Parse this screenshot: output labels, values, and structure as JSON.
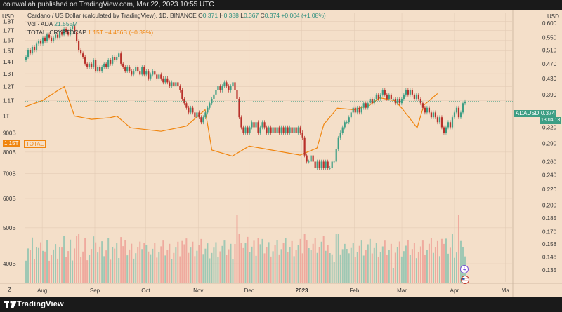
{
  "header": {
    "text": "coinwallah published on TradingView.com, Mar 22, 2023 10:55 UTC"
  },
  "legend": {
    "line1": {
      "name": "Cardano / US Dollar (calculated by TradingView), 1D, BINANCE",
      "o_label": "O",
      "o": "0.371",
      "h_label": "H",
      "h": "0.388",
      "l_label": "L",
      "l": "0.367",
      "c_label": "C",
      "c": "0.374",
      "chg": "+0.004 (+1.08%)"
    },
    "line2": {
      "name": "Vol · ADA",
      "value": "21.555M"
    },
    "line3": {
      "name": "TOTAL, CRYPTOCAP",
      "value": "1.15T",
      "chg": "−4.456B (−0.39%)"
    }
  },
  "axis": {
    "left_unit": "USD",
    "right_unit": "USD",
    "left_ticks": [
      "1.8T",
      "1.7T",
      "1.6T",
      "1.5T",
      "1.4T",
      "1.3T",
      "1.2T",
      "1.1T",
      "1T",
      "900B",
      "800B",
      "700B",
      "600B",
      "500B",
      "400B"
    ],
    "right_ticks": [
      "0.600",
      "0.550",
      "0.510",
      "0.470",
      "0.430",
      "0.390",
      "0.350",
      "0.320",
      "0.290",
      "0.260",
      "0.240",
      "0.220",
      "0.200",
      "0.185",
      "0.170",
      "0.158",
      "0.146",
      "0.135"
    ],
    "x_ticks": [
      "Aug",
      "Sep",
      "Oct",
      "Nov",
      "Dec",
      "2023",
      "Feb",
      "Mar",
      "Apr",
      "Ma"
    ],
    "z_label": "Z"
  },
  "badges": {
    "ada_label": "ADAUSD",
    "ada_price": "0.374",
    "ada_time": "13:04:13",
    "total_price": "1.15T",
    "total_label": "TOTAL"
  },
  "footer": {
    "brand": "TradingView"
  },
  "colors": {
    "background": "#f4dfc9",
    "up": "#3d9e84",
    "down": "#b8302a",
    "total_line": "#f0850e",
    "vol_up": "#8fc4b0",
    "vol_down": "#eda196"
  },
  "chart_data": {
    "type": "candlestick",
    "x_range": [
      "2022-07-22",
      "2023-05-05"
    ],
    "price_axis": {
      "scale": "log",
      "range": [
        0.13,
        0.64
      ]
    },
    "total_axis": {
      "scale": "log",
      "range": [
        370000000000.0,
        1900000000000.0
      ]
    },
    "series": [
      {
        "name": "ADAUSD",
        "type": "candlestick",
        "close": [
          0.49,
          0.51,
          0.5,
          0.52,
          0.51,
          0.53,
          0.54,
          0.53,
          0.55,
          0.54,
          0.56,
          0.55,
          0.54,
          0.55,
          0.56,
          0.55,
          0.57,
          0.56,
          0.58,
          0.57,
          0.56,
          0.58,
          0.59,
          0.57,
          0.54,
          0.51,
          0.5,
          0.49,
          0.47,
          0.46,
          0.47,
          0.46,
          0.48,
          0.45,
          0.46,
          0.45,
          0.46,
          0.47,
          0.46,
          0.48,
          0.47,
          0.49,
          0.48,
          0.49,
          0.5,
          0.47,
          0.46,
          0.45,
          0.46,
          0.45,
          0.44,
          0.45,
          0.46,
          0.45,
          0.44,
          0.46,
          0.44,
          0.45,
          0.43,
          0.44,
          0.45,
          0.44,
          0.43,
          0.44,
          0.43,
          0.42,
          0.43,
          0.42,
          0.41,
          0.42,
          0.41,
          0.42,
          0.41,
          0.4,
          0.38,
          0.37,
          0.36,
          0.35,
          0.36,
          0.35,
          0.34,
          0.35,
          0.34,
          0.33,
          0.34,
          0.35,
          0.36,
          0.37,
          0.38,
          0.39,
          0.4,
          0.41,
          0.4,
          0.41,
          0.42,
          0.41,
          0.4,
          0.41,
          0.42,
          0.4,
          0.38,
          0.34,
          0.32,
          0.31,
          0.32,
          0.31,
          0.32,
          0.33,
          0.32,
          0.33,
          0.31,
          0.32,
          0.33,
          0.32,
          0.31,
          0.32,
          0.31,
          0.32,
          0.31,
          0.32,
          0.31,
          0.32,
          0.31,
          0.32,
          0.31,
          0.32,
          0.31,
          0.32,
          0.31,
          0.32,
          0.31,
          0.3,
          0.27,
          0.26,
          0.26,
          0.27,
          0.26,
          0.25,
          0.26,
          0.25,
          0.26,
          0.25,
          0.26,
          0.25,
          0.25,
          0.26,
          0.26,
          0.28,
          0.3,
          0.31,
          0.32,
          0.33,
          0.33,
          0.34,
          0.35,
          0.36,
          0.35,
          0.36,
          0.35,
          0.36,
          0.37,
          0.36,
          0.37,
          0.38,
          0.37,
          0.38,
          0.39,
          0.38,
          0.39,
          0.4,
          0.39,
          0.38,
          0.39,
          0.38,
          0.38,
          0.37,
          0.38,
          0.37,
          0.38,
          0.39,
          0.4,
          0.39,
          0.4,
          0.39,
          0.38,
          0.39,
          0.38,
          0.37,
          0.36,
          0.35,
          0.36,
          0.35,
          0.34,
          0.35,
          0.34,
          0.33,
          0.34,
          0.32,
          0.31,
          0.32,
          0.33,
          0.32,
          0.34,
          0.35,
          0.36,
          0.34,
          0.35,
          0.37,
          0.374
        ],
        "open": [
          0.48,
          0.49,
          0.51,
          0.5,
          0.52,
          0.51,
          0.53,
          0.54,
          0.53,
          0.55,
          0.54,
          0.56,
          0.55,
          0.54,
          0.55,
          0.56,
          0.55,
          0.57,
          0.56,
          0.58,
          0.57,
          0.56,
          0.58,
          0.59,
          0.57,
          0.54,
          0.51,
          0.5,
          0.49,
          0.47,
          0.46,
          0.47,
          0.46,
          0.48,
          0.45,
          0.46,
          0.45,
          0.46,
          0.47,
          0.46,
          0.48,
          0.47,
          0.49,
          0.48,
          0.49,
          0.5,
          0.47,
          0.46,
          0.45,
          0.46,
          0.45,
          0.44,
          0.45,
          0.46,
          0.45,
          0.44,
          0.46,
          0.44,
          0.45,
          0.43,
          0.44,
          0.45,
          0.44,
          0.43,
          0.44,
          0.43,
          0.42,
          0.43,
          0.42,
          0.41,
          0.42,
          0.41,
          0.42,
          0.41,
          0.4,
          0.38,
          0.37,
          0.36,
          0.35,
          0.36,
          0.35,
          0.34,
          0.35,
          0.34,
          0.33,
          0.34,
          0.35,
          0.36,
          0.37,
          0.38,
          0.39,
          0.4,
          0.41,
          0.4,
          0.41,
          0.42,
          0.41,
          0.4,
          0.41,
          0.42,
          0.4,
          0.38,
          0.34,
          0.32,
          0.31,
          0.32,
          0.31,
          0.32,
          0.33,
          0.32,
          0.33,
          0.31,
          0.32,
          0.33,
          0.32,
          0.31,
          0.32,
          0.31,
          0.32,
          0.31,
          0.32,
          0.31,
          0.32,
          0.31,
          0.32,
          0.31,
          0.32,
          0.31,
          0.32,
          0.31,
          0.32,
          0.31,
          0.3,
          0.27,
          0.26,
          0.26,
          0.27,
          0.26,
          0.25,
          0.26,
          0.25,
          0.26,
          0.25,
          0.26,
          0.25,
          0.25,
          0.26,
          0.26,
          0.28,
          0.3,
          0.31,
          0.32,
          0.33,
          0.33,
          0.34,
          0.35,
          0.36,
          0.35,
          0.36,
          0.35,
          0.36,
          0.37,
          0.36,
          0.37,
          0.38,
          0.37,
          0.38,
          0.39,
          0.38,
          0.39,
          0.4,
          0.39,
          0.38,
          0.39,
          0.38,
          0.38,
          0.37,
          0.38,
          0.37,
          0.38,
          0.39,
          0.4,
          0.39,
          0.4,
          0.39,
          0.38,
          0.39,
          0.38,
          0.37,
          0.36,
          0.35,
          0.36,
          0.35,
          0.34,
          0.35,
          0.34,
          0.33,
          0.34,
          0.32,
          0.31,
          0.32,
          0.33,
          0.32,
          0.34,
          0.35,
          0.36,
          0.34,
          0.35,
          0.37
        ]
      },
      {
        "name": "TOTAL",
        "type": "line",
        "x": [
          "2022-07-22",
          "2022-08-01",
          "2022-08-10",
          "2022-08-14",
          "2022-08-20",
          "2022-08-30",
          "2022-09-10",
          "2022-09-14",
          "2022-09-22",
          "2022-10-01",
          "2022-10-10",
          "2022-10-25",
          "2022-11-05",
          "2022-11-09",
          "2022-11-21",
          "2022-12-01",
          "2022-12-14",
          "2022-12-31",
          "2023-01-10",
          "2023-01-14",
          "2023-01-22",
          "2023-02-01",
          "2023-02-10",
          "2023-02-16",
          "2023-02-25",
          "2023-03-01",
          "2023-03-10",
          "2023-03-14",
          "2023-03-22"
        ],
        "values": [
          1060000000000.0,
          1100000000000.0,
          1170000000000.0,
          1200000000000.0,
          1000000000000.0,
          980000000000.0,
          990000000000.0,
          1000000000000.0,
          930000000000.0,
          920000000000.0,
          910000000000.0,
          940000000000.0,
          1040000000000.0,
          810000000000.0,
          780000000000.0,
          830000000000.0,
          810000000000.0,
          785000000000.0,
          820000000000.0,
          950000000000.0,
          1050000000000.0,
          1040000000000.0,
          1070000000000.0,
          1120000000000.0,
          1100000000000.0,
          1050000000000.0,
          930000000000.0,
          1070000000000.0,
          1150000000000.0
        ]
      }
    ]
  }
}
